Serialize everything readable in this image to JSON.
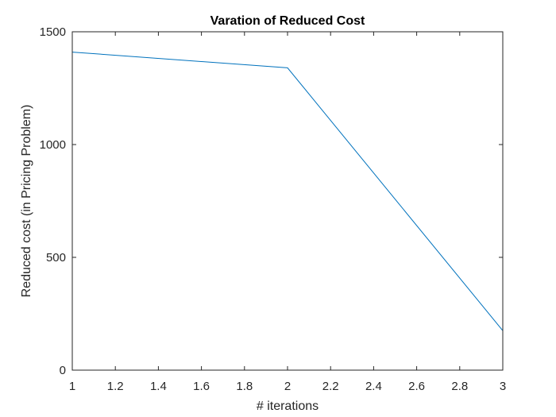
{
  "chart_data": {
    "type": "line",
    "title": "Varation of Reduced Cost",
    "xlabel": "# iterations",
    "ylabel": "Reduced cost (in Pricing Problem)",
    "xlim": [
      1,
      3
    ],
    "ylim": [
      0,
      1500
    ],
    "xticks": [
      1,
      1.2,
      1.4,
      1.6,
      1.8,
      2,
      2.2,
      2.4,
      2.6,
      2.8,
      3
    ],
    "xtick_labels": [
      "1",
      "1.2",
      "1.4",
      "1.6",
      "1.8",
      "2",
      "2.2",
      "2.4",
      "2.6",
      "2.8",
      "3"
    ],
    "yticks": [
      0,
      500,
      1000,
      1500
    ],
    "ytick_labels": [
      "0",
      "500",
      "1000",
      "1500"
    ],
    "grid": false,
    "legend": "none",
    "series": [
      {
        "x": [
          1,
          2,
          3
        ],
        "y": [
          1410,
          1340,
          175
        ],
        "color": "#0072BD"
      }
    ],
    "axis_color": "#262626"
  }
}
